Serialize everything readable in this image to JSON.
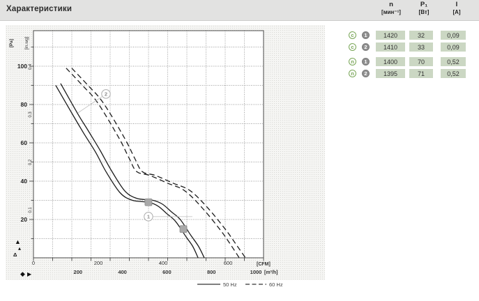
{
  "header": {
    "title": "Характеристики"
  },
  "table": {
    "columns": [
      {
        "symbol": "n",
        "unit": "[мин⁻¹]"
      },
      {
        "symbol": "P₁",
        "unit": "[Вт]"
      },
      {
        "symbol": "I",
        "unit": "[A]"
      }
    ],
    "rows": [
      {
        "letter_icon": "c",
        "num_icon": "1",
        "values": [
          "1420",
          "32",
          "0,09"
        ]
      },
      {
        "letter_icon": "c",
        "num_icon": "2",
        "values": [
          "1410",
          "33",
          "0,09"
        ]
      },
      {
        "letter_icon": "n",
        "num_icon": "1",
        "values": [
          "1400",
          "70",
          "0,52"
        ]
      },
      {
        "letter_icon": "n",
        "num_icon": "2",
        "values": [
          "1395",
          "71",
          "0,52"
        ]
      }
    ]
  },
  "chart_data": {
    "type": "line",
    "title": "",
    "x_axis": {
      "label_primary": "[CFM]",
      "ticks_primary": [
        0,
        200,
        400,
        600
      ],
      "label_secondary": "[m³/h]",
      "ticks_secondary": [
        200,
        400,
        600,
        800,
        1000
      ],
      "range_m3h": [
        0,
        1035
      ]
    },
    "y_axis": {
      "label_primary": "[Pa]",
      "ticks_primary": [
        20,
        40,
        60,
        80,
        100
      ],
      "label_secondary": "[in.wg]",
      "ticks_secondary": [
        0.1,
        0.2,
        0.3,
        0.4
      ],
      "range_pa": [
        0,
        118
      ]
    },
    "grid": "dotted",
    "legend_position": "bottom-right",
    "legend": [
      {
        "style": "solid",
        "label": "50 Hz"
      },
      {
        "style": "dashed",
        "label": "60 Hz"
      }
    ],
    "series": [
      {
        "name": "curve-1-50hz",
        "style": "solid",
        "points": [
          [
            100,
            90
          ],
          [
            180,
            74
          ],
          [
            226,
            65
          ],
          [
            280,
            55
          ],
          [
            326,
            45
          ],
          [
            389,
            34
          ],
          [
            445,
            30
          ],
          [
            517,
            29
          ],
          [
            560,
            27
          ],
          [
            600,
            23
          ],
          [
            639,
            19
          ],
          [
            686,
            11
          ],
          [
            716,
            6
          ],
          [
            740,
            0
          ]
        ]
      },
      {
        "name": "curve-2-50hz",
        "style": "solid",
        "points": [
          [
            122,
            91
          ],
          [
            200,
            75
          ],
          [
            248,
            66
          ],
          [
            300,
            56
          ],
          [
            348,
            46
          ],
          [
            410,
            35
          ],
          [
            465,
            31
          ],
          [
            537,
            30
          ],
          [
            580,
            28
          ],
          [
            620,
            24
          ],
          [
            660,
            20
          ],
          [
            706,
            12
          ],
          [
            742,
            6
          ],
          [
            768,
            0
          ]
        ]
      },
      {
        "name": "curve-1-60hz",
        "style": "dashed",
        "points": [
          [
            147,
            99
          ],
          [
            220,
            90
          ],
          [
            288,
            81
          ],
          [
            382,
            63
          ],
          [
            430,
            52
          ],
          [
            464,
            45
          ],
          [
            523,
            43
          ],
          [
            602,
            39
          ],
          [
            680,
            35
          ],
          [
            759,
            26
          ],
          [
            837,
            15
          ],
          [
            880,
            8
          ],
          [
            925,
            0
          ]
        ]
      },
      {
        "name": "curve-2-60hz",
        "style": "dashed",
        "points": [
          [
            172,
            99
          ],
          [
            245,
            90
          ],
          [
            313,
            81
          ],
          [
            407,
            63
          ],
          [
            455,
            52
          ],
          [
            489,
            45
          ],
          [
            548,
            43
          ],
          [
            627,
            39
          ],
          [
            705,
            35
          ],
          [
            784,
            26
          ],
          [
            862,
            15
          ],
          [
            905,
            8
          ],
          [
            953,
            0
          ]
        ]
      }
    ],
    "annotations": [
      {
        "label": "2",
        "m3h": 326,
        "pa": 85.5,
        "leader": "down-left"
      },
      {
        "label": "1",
        "m3h": 517,
        "pa": 21.5,
        "leader": "right"
      }
    ],
    "operating_points": [
      {
        "m3h": 517,
        "pa": 29
      },
      {
        "m3h": 674,
        "pa": 15
      }
    ]
  },
  "axis_icons": {
    "pressure_axis_arrows": [
      "▲",
      "▴",
      "Δ"
    ],
    "flow_axis_icon": "◆",
    "flow_axis_arrow": "▶"
  }
}
